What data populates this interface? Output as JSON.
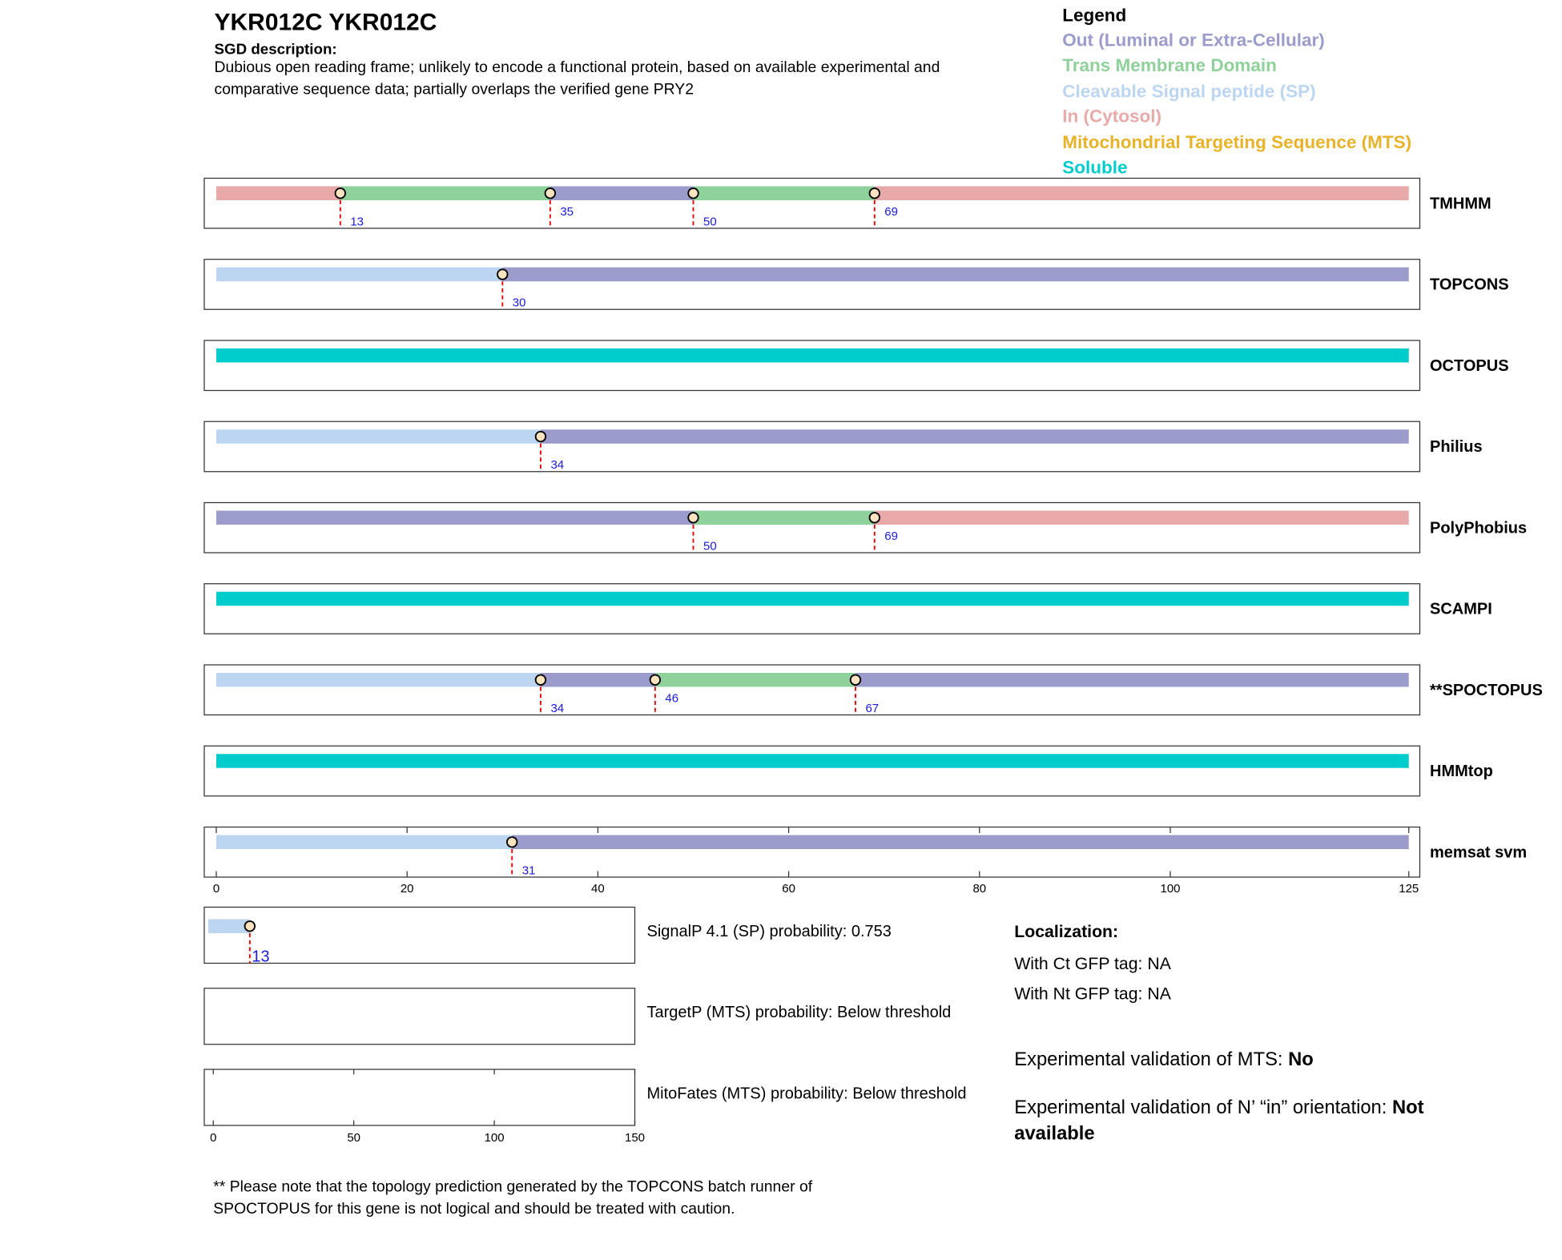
{
  "header": {
    "title": "YKR012C  YKR012C",
    "description_label": "SGD description:",
    "description": "Dubious open reading frame; unlikely to encode a functional protein, based on available experimental and comparative sequence data; partially overlaps the verified gene PRY2"
  },
  "legend": {
    "title": "Legend",
    "items": [
      {
        "label": "Out (Luminal or Extra-Cellular)",
        "color": "#9b9bcc"
      },
      {
        "label": "Trans Membrane Domain",
        "color": "#8fd19a"
      },
      {
        "label": "Cleavable Signal peptide (SP)",
        "color": "#bcd6f2"
      },
      {
        "label": "In (Cytosol)",
        "color": "#e8aaa9"
      },
      {
        "label": "Mitochondrial Targeting Sequence (MTS)",
        "color": "#e8b32a"
      },
      {
        "label": "Soluble",
        "color": "#00cccc"
      }
    ]
  },
  "chart_data": [
    {
      "type": "topology",
      "xlim": [
        0,
        125
      ],
      "xticks": [
        0,
        20,
        40,
        60,
        80,
        100,
        125
      ],
      "tracks": [
        {
          "name": "TMHMM",
          "colors": [
            "#e8aaa9",
            "#8fd19a",
            "#9b9bcc",
            "#8fd19a",
            "#e8aaa9"
          ],
          "boundaries": [
            13,
            35,
            50,
            69
          ]
        },
        {
          "name": "TOPCONS",
          "colors": [
            "#bcd6f2",
            "#9b9bcc"
          ],
          "boundaries": [
            30
          ]
        },
        {
          "name": "OCTOPUS",
          "colors": [
            "#00cccc"
          ],
          "boundaries": []
        },
        {
          "name": "Philius",
          "colors": [
            "#bcd6f2",
            "#9b9bcc"
          ],
          "boundaries": [
            34
          ]
        },
        {
          "name": "PolyPhobius",
          "colors": [
            "#9b9bcc",
            "#8fd19a",
            "#e8aaa9"
          ],
          "boundaries": [
            50,
            69
          ]
        },
        {
          "name": "SCAMPI",
          "colors": [
            "#00cccc"
          ],
          "boundaries": []
        },
        {
          "name": "**SPOCTOPUS",
          "colors": [
            "#bcd6f2",
            "#9b9bcc",
            "#8fd19a",
            "#9b9bcc"
          ],
          "boundaries": [
            34,
            46,
            67
          ]
        },
        {
          "name": "HMMtop",
          "colors": [
            "#00cccc"
          ],
          "boundaries": []
        },
        {
          "name": "memsat svm",
          "colors": [
            "#bcd6f2",
            "#9b9bcc"
          ],
          "boundaries": [
            31
          ]
        }
      ]
    },
    {
      "type": "panels",
      "xlim": [
        0,
        150
      ],
      "xticks": [
        0,
        50,
        100,
        150
      ],
      "panels": [
        {
          "label": "SignalP 4.1 (SP) probability: 0.753",
          "color": "#bcd6f2",
          "boundaries": [
            13
          ]
        },
        {
          "label": "TargetP (MTS) probability: Below threshold",
          "boundaries": []
        },
        {
          "label": "MitoFates (MTS) probability: Below threshold",
          "boundaries": []
        }
      ]
    }
  ],
  "localization": {
    "title": "Localization:",
    "lines": [
      "With Ct GFP tag: NA",
      "With Nt GFP tag: NA"
    ],
    "mts_text": "Experimental validation of MTS:",
    "mts_value": "No",
    "orientation_text": "Experimental validation of N’ “in” orientation:",
    "orientation_value": "Not available"
  },
  "note": "** Please note that the topology prediction generated by the TOPCONS batch runner of SPOCTOPUS for this gene is not logical and should be treated with caution."
}
